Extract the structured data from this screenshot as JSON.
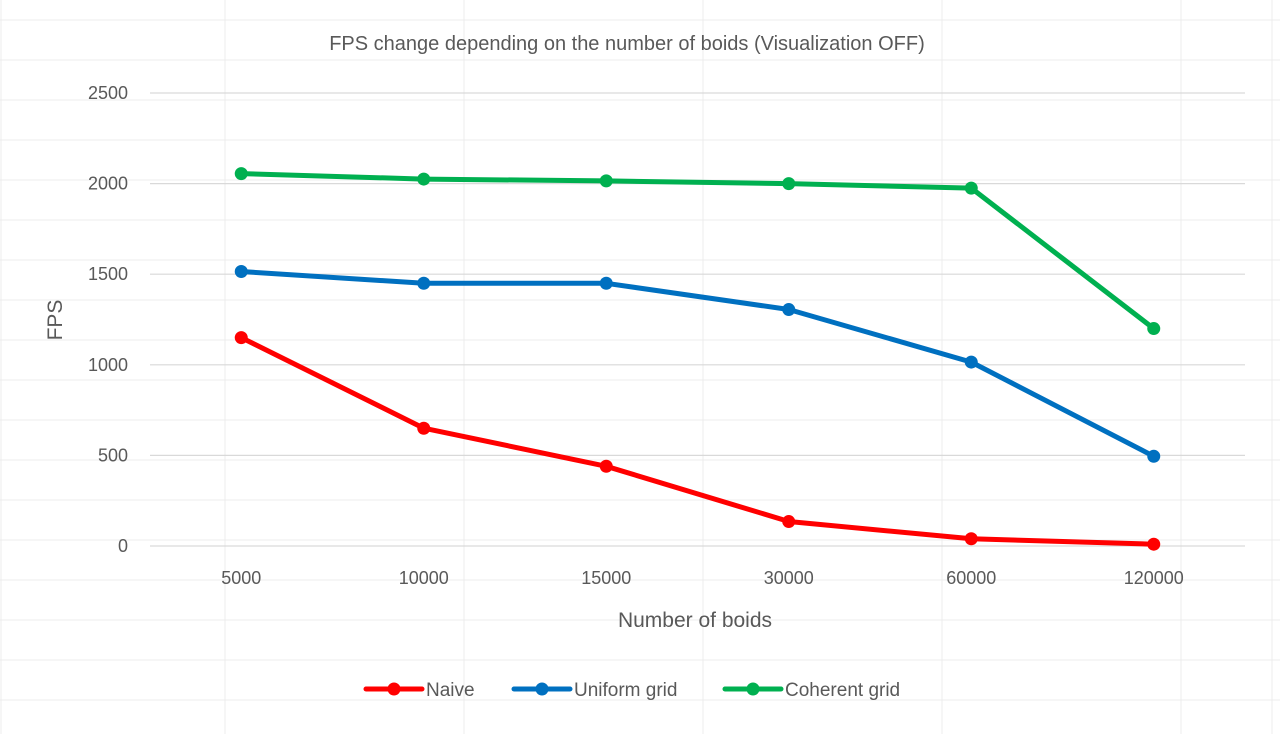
{
  "chart_data": {
    "type": "line",
    "title": "FPS change depending on the number of boids (Visualization OFF)",
    "xlabel": "Number of boids",
    "ylabel": "FPS",
    "categories": [
      "5000",
      "10000",
      "15000",
      "30000",
      "60000",
      "120000"
    ],
    "ylim": [
      0,
      2500
    ],
    "yticks": [
      0,
      500,
      1000,
      1500,
      2000,
      2500
    ],
    "grid": "horizontal",
    "legend": "bottom",
    "series": [
      {
        "name": "Naive",
        "color": "#ff0000",
        "values": [
          1150,
          650,
          440,
          135,
          40,
          10
        ]
      },
      {
        "name": "Uniform grid",
        "color": "#0070c0",
        "values": [
          1515,
          1450,
          1450,
          1305,
          1015,
          495
        ]
      },
      {
        "name": "Coherent grid",
        "color": "#00b050",
        "values": [
          2055,
          2025,
          2015,
          2000,
          1975,
          1200
        ]
      }
    ]
  }
}
